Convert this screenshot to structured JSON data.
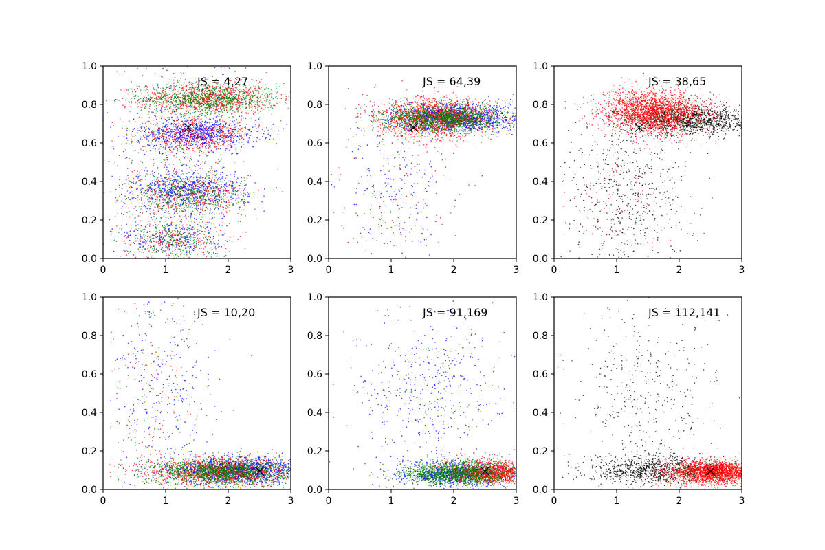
{
  "chart_data": [
    {
      "type": "scatter",
      "annotation": "JS = 4,27",
      "xlim": [
        0,
        3
      ],
      "ylim": [
        0,
        1
      ],
      "xticks": [
        "0",
        "1",
        "2",
        "3"
      ],
      "yticks": [
        "0.0",
        "0.2",
        "0.4",
        "0.6",
        "0.8",
        "1.0"
      ],
      "grid": false,
      "marker": {
        "x": 1.36,
        "y": 0.68
      },
      "clusters": [
        {
          "color": "#ff0000",
          "points": 900,
          "cx": 1.7,
          "cy": 0.83,
          "sx": 0.55,
          "sy": 0.04
        },
        {
          "color": "#008000",
          "points": 900,
          "cx": 1.7,
          "cy": 0.83,
          "sx": 0.55,
          "sy": 0.04
        },
        {
          "color": "#0000ff",
          "points": 900,
          "cx": 1.5,
          "cy": 0.65,
          "sx": 0.5,
          "sy": 0.04
        },
        {
          "color": "#ff0000",
          "points": 500,
          "cx": 1.5,
          "cy": 0.64,
          "sx": 0.45,
          "sy": 0.04
        },
        {
          "color": "#0000ff",
          "points": 700,
          "cx": 1.4,
          "cy": 0.35,
          "sx": 0.45,
          "sy": 0.05
        },
        {
          "color": "#ff0000",
          "points": 400,
          "cx": 1.4,
          "cy": 0.33,
          "sx": 0.45,
          "sy": 0.05
        },
        {
          "color": "#008000",
          "points": 400,
          "cx": 1.3,
          "cy": 0.33,
          "sx": 0.45,
          "sy": 0.05
        },
        {
          "color": "#0000ff",
          "points": 300,
          "cx": 1.1,
          "cy": 0.1,
          "sx": 0.4,
          "sy": 0.05
        },
        {
          "color": "#ff0000",
          "points": 250,
          "cx": 1.1,
          "cy": 0.1,
          "sx": 0.4,
          "sy": 0.05
        },
        {
          "color": "#008000",
          "points": 250,
          "cx": 1.1,
          "cy": 0.1,
          "sx": 0.4,
          "sy": 0.05
        },
        {
          "color": "#0000ff",
          "points": 400,
          "cx": 1.2,
          "cy": 0.5,
          "sx": 0.5,
          "sy": 0.28
        },
        {
          "color": "#ff0000",
          "points": 200,
          "cx": 1.2,
          "cy": 0.5,
          "sx": 0.5,
          "sy": 0.28
        },
        {
          "color": "#008000",
          "points": 200,
          "cx": 1.2,
          "cy": 0.5,
          "sx": 0.5,
          "sy": 0.28
        }
      ]
    },
    {
      "type": "scatter",
      "annotation": "JS = 64,39",
      "xlim": [
        0,
        3
      ],
      "ylim": [
        0,
        1
      ],
      "xticks": [
        "0",
        "1",
        "2",
        "3"
      ],
      "yticks": [
        "0.0",
        "0.2",
        "0.4",
        "0.6",
        "0.8",
        "1.0"
      ],
      "grid": false,
      "marker": {
        "x": 1.36,
        "y": 0.68
      },
      "clusters": [
        {
          "color": "#0000ff",
          "points": 1400,
          "cx": 2.1,
          "cy": 0.73,
          "sx": 0.5,
          "sy": 0.035
        },
        {
          "color": "#ff0000",
          "points": 1600,
          "cx": 1.7,
          "cy": 0.73,
          "sx": 0.45,
          "sy": 0.05
        },
        {
          "color": "#008000",
          "points": 1400,
          "cx": 1.85,
          "cy": 0.73,
          "sx": 0.45,
          "sy": 0.035
        },
        {
          "color": "#0000ff",
          "points": 250,
          "cx": 1.1,
          "cy": 0.35,
          "sx": 0.45,
          "sy": 0.2
        },
        {
          "color": "#ff0000",
          "points": 60,
          "cx": 1.2,
          "cy": 0.3,
          "sx": 0.45,
          "sy": 0.15
        },
        {
          "color": "#008000",
          "points": 60,
          "cx": 0.8,
          "cy": 0.4,
          "sx": 0.4,
          "sy": 0.3
        }
      ]
    },
    {
      "type": "scatter",
      "annotation": "JS = 38,65",
      "xlim": [
        0,
        3
      ],
      "ylim": [
        0,
        1
      ],
      "xticks": [
        "0",
        "1",
        "2",
        "3"
      ],
      "yticks": [
        "0.0",
        "0.2",
        "0.4",
        "0.6",
        "0.8",
        "1.0"
      ],
      "grid": false,
      "marker": {
        "x": 1.36,
        "y": 0.68
      },
      "clusters": [
        {
          "color": "#000000",
          "points": 1300,
          "cx": 2.2,
          "cy": 0.72,
          "sx": 0.5,
          "sy": 0.04
        },
        {
          "color": "#ff0000",
          "points": 2200,
          "cx": 1.6,
          "cy": 0.76,
          "sx": 0.4,
          "sy": 0.055
        },
        {
          "color": "#000000",
          "points": 600,
          "cx": 1.2,
          "cy": 0.35,
          "sx": 0.5,
          "sy": 0.22
        },
        {
          "color": "#ff0000",
          "points": 120,
          "cx": 1.1,
          "cy": 0.3,
          "sx": 0.45,
          "sy": 0.18
        }
      ]
    },
    {
      "type": "scatter",
      "annotation": "JS = 10,20",
      "xlim": [
        0,
        3
      ],
      "ylim": [
        0,
        1
      ],
      "xticks": [
        "0",
        "1",
        "2",
        "3"
      ],
      "yticks": [
        "0.0",
        "0.2",
        "0.4",
        "0.6",
        "0.8",
        "1.0"
      ],
      "grid": false,
      "marker": {
        "x": 2.5,
        "y": 0.095
      },
      "clusters": [
        {
          "color": "#0000ff",
          "points": 1400,
          "cx": 2.2,
          "cy": 0.1,
          "sx": 0.5,
          "sy": 0.035
        },
        {
          "color": "#ff0000",
          "points": 1400,
          "cx": 1.8,
          "cy": 0.09,
          "sx": 0.55,
          "sy": 0.035
        },
        {
          "color": "#008000",
          "points": 1500,
          "cx": 1.9,
          "cy": 0.09,
          "sx": 0.55,
          "sy": 0.033
        },
        {
          "color": "#0000ff",
          "points": 350,
          "cx": 0.9,
          "cy": 0.45,
          "sx": 0.4,
          "sy": 0.28
        },
        {
          "color": "#ff0000",
          "points": 100,
          "cx": 0.8,
          "cy": 0.45,
          "sx": 0.4,
          "sy": 0.28
        },
        {
          "color": "#008000",
          "points": 100,
          "cx": 0.8,
          "cy": 0.45,
          "sx": 0.4,
          "sy": 0.28
        }
      ]
    },
    {
      "type": "scatter",
      "annotation": "JS = 91,169",
      "xlim": [
        0,
        3
      ],
      "ylim": [
        0,
        1
      ],
      "xticks": [
        "0",
        "1",
        "2",
        "3"
      ],
      "yticks": [
        "0.0",
        "0.2",
        "0.4",
        "0.6",
        "0.8",
        "1.0"
      ],
      "grid": false,
      "marker": {
        "x": 2.5,
        "y": 0.095
      },
      "clusters": [
        {
          "color": "#0000ff",
          "points": 900,
          "cx": 2.0,
          "cy": 0.08,
          "sx": 0.45,
          "sy": 0.03
        },
        {
          "color": "#ff0000",
          "points": 1300,
          "cx": 2.6,
          "cy": 0.09,
          "sx": 0.3,
          "sy": 0.03
        },
        {
          "color": "#008000",
          "points": 1500,
          "cx": 2.05,
          "cy": 0.085,
          "sx": 0.4,
          "sy": 0.03
        },
        {
          "color": "#0000ff",
          "points": 450,
          "cx": 1.6,
          "cy": 0.5,
          "sx": 0.6,
          "sy": 0.22
        },
        {
          "color": "#008000",
          "points": 80,
          "cx": 1.8,
          "cy": 0.5,
          "sx": 0.4,
          "sy": 0.15
        }
      ]
    },
    {
      "type": "scatter",
      "annotation": "JS = 112,141",
      "xlim": [
        0,
        3
      ],
      "ylim": [
        0,
        1
      ],
      "xticks": [
        "0",
        "1",
        "2",
        "3"
      ],
      "yticks": [
        "0.0",
        "0.2",
        "0.4",
        "0.6",
        "0.8",
        "1.0"
      ],
      "grid": false,
      "marker": {
        "x": 2.5,
        "y": 0.095
      },
      "clusters": [
        {
          "color": "#000000",
          "points": 900,
          "cx": 1.6,
          "cy": 0.1,
          "sx": 0.5,
          "sy": 0.035
        },
        {
          "color": "#ff0000",
          "points": 2200,
          "cx": 2.55,
          "cy": 0.09,
          "sx": 0.35,
          "sy": 0.03
        },
        {
          "color": "#000000",
          "points": 400,
          "cx": 1.5,
          "cy": 0.5,
          "sx": 0.6,
          "sy": 0.25
        }
      ]
    }
  ]
}
